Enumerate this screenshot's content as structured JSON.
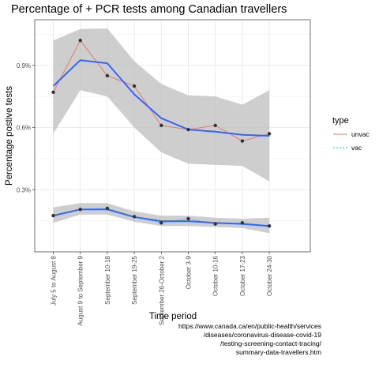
{
  "chart_data": {
    "type": "line",
    "title": "Percentage of + PCR tests among Canadian travellers",
    "xlabel": "Time period",
    "ylabel": "Percentage  postive tests",
    "categories": [
      "July 5 to August 8",
      "August 9 to September 9",
      "September 10-18",
      "September 19-25",
      "September 26-October 2",
      "October 3-9",
      "October 10-16",
      "October 17-23",
      "October 24-30"
    ],
    "y_ticks": [
      "0.3%",
      "0.6%",
      "0.9%"
    ],
    "y_tick_values": [
      0.3,
      0.6,
      0.9
    ],
    "ylim": [
      0.0,
      1.12
    ],
    "grid": true,
    "legend": {
      "title": "type",
      "placement": "right"
    },
    "series": [
      {
        "name": "unvac",
        "color": "#e07b6f",
        "values": [
          0.77,
          1.02,
          0.85,
          0.8,
          0.61,
          0.59,
          0.61,
          0.535,
          0.57
        ],
        "smooth": [
          0.8,
          0.925,
          0.91,
          0.76,
          0.645,
          0.59,
          0.58,
          0.565,
          0.56
        ],
        "ci_low": [
          0.57,
          0.78,
          0.75,
          0.6,
          0.48,
          0.425,
          0.42,
          0.415,
          0.34
        ],
        "ci_high": [
          1.02,
          1.075,
          1.078,
          0.92,
          0.81,
          0.755,
          0.75,
          0.71,
          0.78
        ]
      },
      {
        "name": "vac",
        "color": "#19bfc4",
        "values": [
          0.175,
          0.205,
          0.21,
          0.17,
          0.14,
          0.16,
          0.135,
          0.14,
          0.125
        ],
        "smooth": [
          0.175,
          0.205,
          0.205,
          0.168,
          0.148,
          0.148,
          0.14,
          0.135,
          0.125
        ],
        "ci_low": [
          0.14,
          0.18,
          0.18,
          0.145,
          0.125,
          0.125,
          0.12,
          0.115,
          0.09
        ],
        "ci_high": [
          0.215,
          0.235,
          0.235,
          0.195,
          0.175,
          0.175,
          0.165,
          0.16,
          0.165
        ]
      }
    ],
    "colors": {
      "smooth_line": "#3366ff",
      "ribbon": "#bdbdbd",
      "points": "#333333",
      "grid": "#ebebeb",
      "panel_border": "#333333"
    }
  },
  "caption_lines": [
    "https://www.canada.ca/en/public-health/services",
    "/diseases/coronavirus-disease-covid-19",
    "/testing-screening-contact-tracing/",
    "summary-data-travellers.htm"
  ]
}
